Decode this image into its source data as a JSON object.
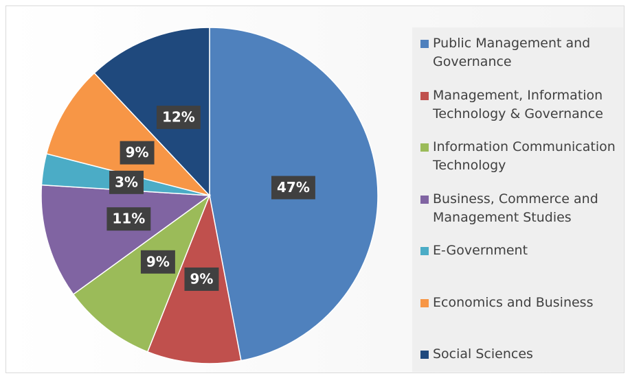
{
  "chart_data": {
    "type": "pie",
    "categories": [
      "Public Management and Governance",
      "Management, Information Technology & Governance",
      "Information Communication Technology",
      "Business, Commerce and Management Studies",
      "E-Government",
      "Economics and Business",
      "Social Sciences"
    ],
    "values": [
      47,
      9,
      9,
      11,
      3,
      9,
      12
    ],
    "value_labels": [
      "47%",
      "9%",
      "9%",
      "11%",
      "3%",
      "9%",
      "12%"
    ],
    "colors": [
      "#4f81bd",
      "#c0504d",
      "#9bbb59",
      "#8064a2",
      "#4bacc6",
      "#f79646",
      "#1f497d"
    ],
    "legend": "right"
  }
}
